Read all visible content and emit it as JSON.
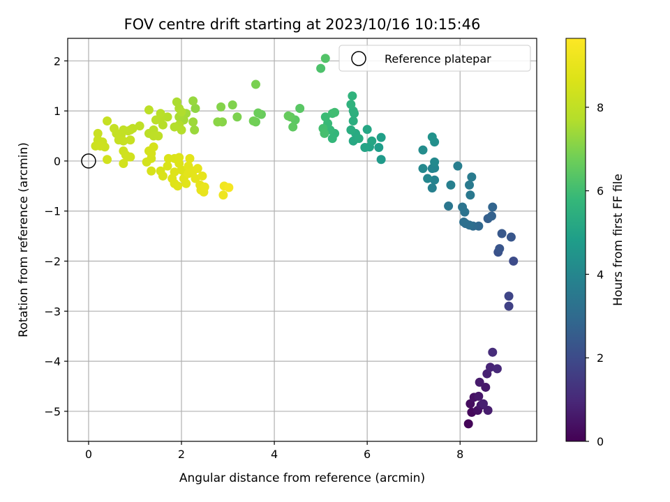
{
  "chart_data": {
    "type": "scatter",
    "title": "FOV centre drift starting at 2023/10/16 10:15:46",
    "xlabel": "Angular distance from reference (arcmin)",
    "ylabel": "Rotation from reference (arcmin)",
    "xlim": [
      -0.45,
      9.65
    ],
    "ylim": [
      -5.6,
      2.45
    ],
    "xticks": [
      0,
      2,
      4,
      6,
      8
    ],
    "yticks": [
      -5,
      -4,
      -3,
      -2,
      -1,
      0,
      1,
      2
    ],
    "xtick_labels": [
      "0",
      "2",
      "4",
      "6",
      "8"
    ],
    "ytick_labels": [
      "−5",
      "−4",
      "−3",
      "−2",
      "−1",
      "0",
      "1",
      "2"
    ],
    "grid": true,
    "legend": {
      "position": "top-right",
      "entry": "Reference platepar"
    },
    "reference_point": {
      "x": 0,
      "y": 0
    },
    "colorbar": {
      "label": "Hours from first FF file",
      "range": [
        0,
        9.65
      ],
      "ticks": [
        0,
        2,
        4,
        6,
        8
      ],
      "tick_labels": [
        "0",
        "2",
        "4",
        "6",
        "8"
      ],
      "colormap": "viridis"
    },
    "points": [
      [
        8.18,
        -5.25,
        0.1
      ],
      [
        8.25,
        -5.02,
        0.2
      ],
      [
        8.22,
        -4.85,
        0.3
      ],
      [
        8.38,
        -4.98,
        0.35
      ],
      [
        8.3,
        -4.72,
        0.4
      ],
      [
        8.45,
        -4.88,
        0.5
      ],
      [
        8.4,
        -4.7,
        0.55
      ],
      [
        8.55,
        -4.52,
        0.6
      ],
      [
        8.42,
        -4.42,
        0.65
      ],
      [
        8.6,
        -4.98,
        0.7
      ],
      [
        8.5,
        -4.85,
        0.75
      ],
      [
        8.58,
        -4.25,
        0.8
      ],
      [
        8.65,
        -4.12,
        0.9
      ],
      [
        8.8,
        -4.15,
        1.0
      ],
      [
        8.7,
        -3.82,
        1.1
      ],
      [
        9.05,
        -2.9,
        1.7
      ],
      [
        9.05,
        -2.7,
        1.8
      ],
      [
        9.15,
        -2.0,
        2.0
      ],
      [
        8.82,
        -1.82,
        2.2
      ],
      [
        8.85,
        -1.75,
        2.3
      ],
      [
        9.1,
        -1.52,
        2.35
      ],
      [
        8.9,
        -1.45,
        2.4
      ],
      [
        8.6,
        -1.15,
        2.6
      ],
      [
        8.68,
        -1.1,
        2.7
      ],
      [
        8.7,
        -0.92,
        2.8
      ],
      [
        8.4,
        -1.3,
        2.9
      ],
      [
        8.28,
        -1.3,
        3.0
      ],
      [
        8.12,
        -1.25,
        3.1
      ],
      [
        8.2,
        -1.28,
        3.15
      ],
      [
        8.08,
        -1.22,
        3.2
      ],
      [
        8.1,
        -1.02,
        3.3
      ],
      [
        8.05,
        -0.92,
        3.35
      ],
      [
        7.75,
        -0.9,
        3.4
      ],
      [
        8.22,
        -0.68,
        3.5
      ],
      [
        8.2,
        -0.48,
        3.55
      ],
      [
        8.25,
        -0.32,
        3.6
      ],
      [
        7.95,
        -0.1,
        3.7
      ],
      [
        7.8,
        -0.48,
        3.75
      ],
      [
        7.4,
        -0.54,
        3.8
      ],
      [
        7.45,
        -0.38,
        3.85
      ],
      [
        7.4,
        -0.15,
        3.9
      ],
      [
        7.45,
        -0.14,
        3.95
      ],
      [
        7.3,
        -0.35,
        4.0
      ],
      [
        7.2,
        -0.15,
        4.05
      ],
      [
        7.45,
        -0.02,
        4.1
      ],
      [
        7.2,
        0.22,
        4.2
      ],
      [
        7.45,
        0.38,
        4.3
      ],
      [
        7.4,
        0.48,
        4.4
      ],
      [
        6.3,
        0.03,
        4.7
      ],
      [
        6.25,
        0.27,
        4.8
      ],
      [
        6.3,
        0.47,
        4.9
      ],
      [
        6.05,
        0.28,
        5.0
      ],
      [
        5.95,
        0.27,
        5.05
      ],
      [
        6.1,
        0.4,
        5.1
      ],
      [
        6.0,
        0.63,
        5.15
      ],
      [
        5.7,
        0.4,
        5.2
      ],
      [
        5.75,
        0.55,
        5.25
      ],
      [
        5.82,
        0.45,
        5.3
      ],
      [
        5.65,
        0.62,
        5.35
      ],
      [
        5.7,
        0.8,
        5.4
      ],
      [
        5.72,
        0.95,
        5.45
      ],
      [
        5.7,
        1.0,
        5.5
      ],
      [
        5.65,
        1.13,
        5.55
      ],
      [
        5.68,
        1.3,
        5.6
      ],
      [
        5.3,
        0.55,
        5.7
      ],
      [
        5.25,
        0.45,
        5.75
      ],
      [
        5.2,
        0.62,
        5.8
      ],
      [
        5.15,
        0.75,
        5.85
      ],
      [
        5.1,
        0.88,
        5.9
      ],
      [
        5.25,
        0.95,
        5.95
      ],
      [
        5.3,
        0.97,
        6.0
      ],
      [
        5.05,
        0.65,
        6.05
      ],
      [
        5.08,
        0.55,
        6.1
      ],
      [
        5.0,
        1.85,
        6.2
      ],
      [
        5.1,
        2.05,
        6.3
      ],
      [
        4.55,
        1.05,
        6.4
      ],
      [
        4.45,
        0.82,
        6.45
      ],
      [
        4.4,
        0.68,
        6.5
      ],
      [
        4.35,
        0.88,
        6.55
      ],
      [
        4.3,
        0.9,
        6.6
      ],
      [
        3.72,
        0.93,
        6.65
      ],
      [
        3.65,
        0.96,
        6.7
      ],
      [
        3.6,
        0.78,
        6.75
      ],
      [
        3.55,
        0.8,
        6.8
      ],
      [
        3.6,
        1.53,
        6.9
      ],
      [
        3.2,
        0.88,
        6.95
      ],
      [
        3.1,
        1.12,
        7.0
      ],
      [
        2.85,
        1.08,
        7.05
      ],
      [
        2.88,
        0.78,
        7.1
      ],
      [
        2.78,
        0.78,
        7.15
      ],
      [
        2.3,
        1.05,
        7.2
      ],
      [
        2.25,
        1.2,
        7.3
      ],
      [
        2.28,
        0.62,
        7.35
      ],
      [
        2.25,
        0.78,
        7.4
      ],
      [
        2.1,
        0.95,
        7.45
      ],
      [
        2.05,
        0.82,
        7.5
      ],
      [
        1.95,
        0.88,
        7.55
      ],
      [
        1.9,
        1.18,
        7.6
      ],
      [
        1.95,
        1.05,
        7.62
      ],
      [
        2.0,
        0.98,
        7.65
      ],
      [
        1.95,
        0.72,
        7.68
      ],
      [
        1.85,
        0.68,
        7.7
      ],
      [
        2.0,
        0.62,
        7.72
      ],
      [
        1.7,
        0.88,
        7.75
      ],
      [
        1.6,
        0.72,
        7.78
      ],
      [
        1.55,
        0.85,
        7.8
      ],
      [
        1.55,
        0.95,
        7.82
      ],
      [
        1.45,
        0.82,
        7.84
      ],
      [
        1.4,
        0.62,
        7.86
      ],
      [
        1.3,
        1.02,
        7.88
      ],
      [
        1.3,
        0.55,
        7.9
      ],
      [
        1.4,
        0.5,
        7.92
      ],
      [
        1.5,
        0.5,
        7.94
      ],
      [
        1.1,
        0.7,
        7.96
      ],
      [
        0.95,
        0.65,
        7.98
      ],
      [
        0.9,
        0.62,
        8.0
      ],
      [
        0.85,
        0.6,
        8.02
      ],
      [
        0.75,
        0.62,
        8.04
      ],
      [
        0.7,
        0.52,
        8.06
      ],
      [
        0.6,
        0.55,
        8.08
      ],
      [
        0.55,
        0.65,
        8.1
      ],
      [
        0.4,
        0.8,
        8.12
      ],
      [
        0.65,
        0.42,
        8.14
      ],
      [
        0.75,
        0.4,
        8.16
      ],
      [
        0.9,
        0.42,
        8.18
      ],
      [
        0.2,
        0.55,
        8.2
      ],
      [
        0.2,
        0.42,
        8.22
      ],
      [
        0.3,
        0.38,
        8.24
      ],
      [
        0.35,
        0.28,
        8.26
      ],
      [
        0.15,
        0.3,
        8.28
      ],
      [
        0.25,
        0.3,
        8.3
      ],
      [
        0.75,
        0.2,
        8.32
      ],
      [
        0.8,
        0.12,
        8.34
      ],
      [
        0.9,
        0.08,
        8.36
      ],
      [
        0.85,
        0.08,
        8.38
      ],
      [
        0.4,
        0.03,
        8.4
      ],
      [
        0.75,
        -0.05,
        8.42
      ],
      [
        1.25,
        -0.02,
        8.44
      ],
      [
        1.35,
        0.05,
        8.46
      ],
      [
        1.35,
        0.15,
        8.48
      ],
      [
        1.3,
        0.2,
        8.5
      ],
      [
        1.4,
        0.28,
        8.52
      ],
      [
        1.35,
        -0.2,
        8.54
      ],
      [
        1.55,
        -0.2,
        8.56
      ],
      [
        1.6,
        -0.3,
        8.58
      ],
      [
        1.7,
        -0.1,
        8.6
      ],
      [
        1.72,
        0.05,
        8.62
      ],
      [
        1.85,
        0.05,
        8.64
      ],
      [
        1.95,
        -0.05,
        8.66
      ],
      [
        1.95,
        0.07,
        8.68
      ],
      [
        2.0,
        -0.18,
        8.7
      ],
      [
        1.85,
        -0.22,
        8.72
      ],
      [
        1.8,
        -0.35,
        8.74
      ],
      [
        1.85,
        -0.45,
        8.76
      ],
      [
        1.92,
        -0.5,
        8.78
      ],
      [
        2.05,
        -0.35,
        8.8
      ],
      [
        2.1,
        -0.45,
        8.82
      ],
      [
        2.15,
        -0.1,
        8.84
      ],
      [
        2.18,
        0.05,
        8.86
      ],
      [
        2.15,
        -0.25,
        8.88
      ],
      [
        2.25,
        -0.2,
        8.9
      ],
      [
        2.35,
        -0.15,
        8.92
      ],
      [
        2.3,
        -0.35,
        8.94
      ],
      [
        2.4,
        -0.48,
        8.96
      ],
      [
        2.45,
        -0.3,
        8.98
      ],
      [
        2.42,
        -0.58,
        9.0
      ],
      [
        2.48,
        -0.62,
        9.02
      ],
      [
        2.5,
        -0.52,
        9.05
      ],
      [
        2.9,
        -0.68,
        9.2
      ],
      [
        2.92,
        -0.5,
        9.3
      ],
      [
        3.02,
        -0.53,
        9.4
      ]
    ]
  }
}
